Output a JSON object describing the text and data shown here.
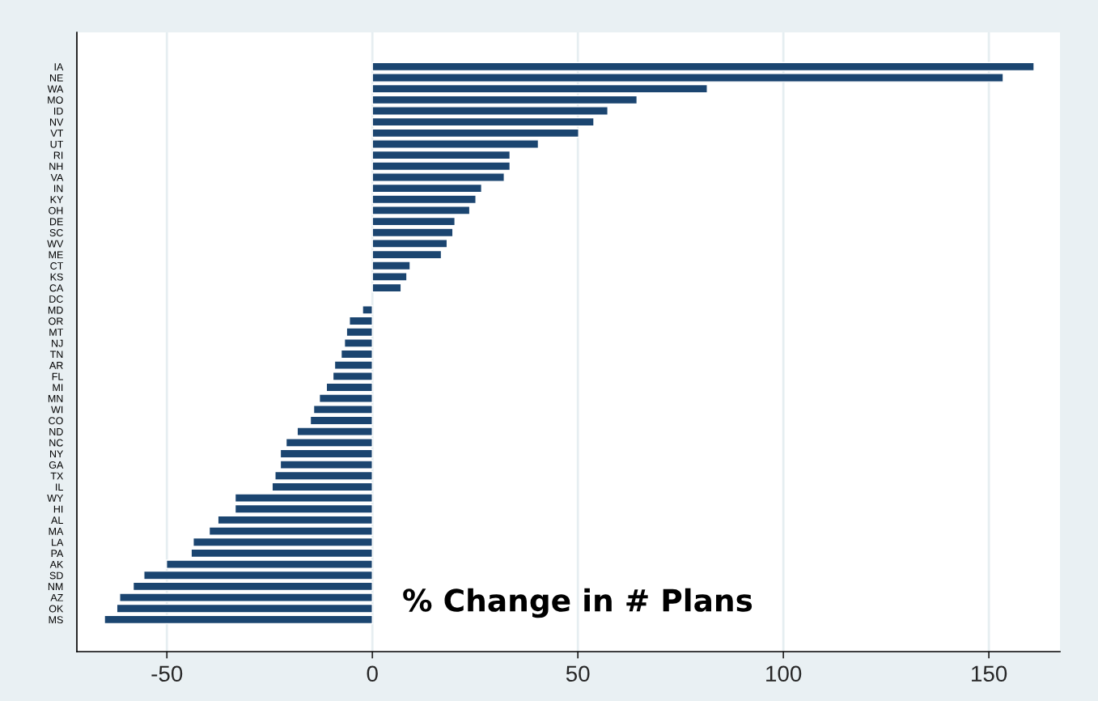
{
  "chart_data": {
    "type": "bar",
    "orientation": "horizontal",
    "categories": [
      "IA",
      "NE",
      "WA",
      "MO",
      "ID",
      "NV",
      "VT",
      "UT",
      "RI",
      "NH",
      "VA",
      "IN",
      "KY",
      "OH",
      "DE",
      "SC",
      "WV",
      "ME",
      "CT",
      "KS",
      "CA",
      "DC",
      "MD",
      "OR",
      "MT",
      "NJ",
      "TN",
      "AR",
      "FL",
      "MI",
      "MN",
      "WI",
      "CO",
      "ND",
      "NC",
      "NY",
      "GA",
      "TX",
      "IL",
      "WY",
      "HI",
      "AL",
      "MA",
      "LA",
      "PA",
      "AK",
      "SD",
      "NM",
      "AZ",
      "OK",
      "MS"
    ],
    "values": [
      161,
      153.5,
      81.5,
      64.4,
      57.3,
      53.9,
      50.2,
      40.4,
      33.5,
      33.5,
      32.1,
      26.6,
      25.2,
      23.7,
      20.1,
      19.6,
      18.2,
      16.8,
      9.2,
      8.4,
      7.0,
      null,
      -2.4,
      -5.6,
      -6.3,
      -6.8,
      -7.6,
      -9.2,
      -9.6,
      -11.2,
      -12.9,
      -14.3,
      -15.1,
      -18.3,
      -21.0,
      -22.4,
      -22.4,
      -23.7,
      -24.4,
      -33.4,
      -33.4,
      -37.6,
      -39.7,
      -43.6,
      -44.1,
      -50.1,
      -55.6,
      -58.2,
      -61.5,
      -62.2,
      -65.2
    ],
    "color": "#1b4570",
    "xlim": [
      -71.9,
      167.3
    ],
    "xticks": [
      {
        "value": -50,
        "label": "-50"
      },
      0,
      50,
      100,
      150
    ],
    "grid": "x",
    "annotations": [
      "% Change in # Plans"
    ]
  }
}
